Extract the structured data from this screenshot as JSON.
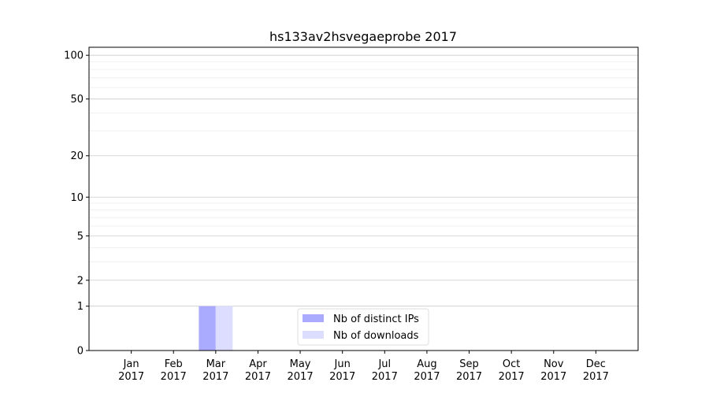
{
  "chart_data": {
    "type": "bar",
    "title": "hs133av2hsvegaeprobe 2017",
    "xlabel": "",
    "ylabel": "",
    "y_scale": "log(1+y)",
    "ylim": [
      0,
      113.5
    ],
    "y_ticks": [
      0,
      1,
      2,
      5,
      10,
      20,
      50,
      100
    ],
    "y_minor_ticks": [
      3,
      4,
      6,
      7,
      8,
      9,
      30,
      40,
      60,
      70,
      80,
      90
    ],
    "grid": true,
    "legend_position": "bottom-center",
    "categories": [
      "Jan\n2017",
      "Feb\n2017",
      "Mar\n2017",
      "Apr\n2017",
      "May\n2017",
      "Jun\n2017",
      "Jul\n2017",
      "Aug\n2017",
      "Sep\n2017",
      "Oct\n2017",
      "Nov\n2017",
      "Dec\n2017"
    ],
    "series": [
      {
        "name": "Nb of distinct IPs",
        "color": "#aaaaff",
        "values": [
          0,
          0,
          1,
          0,
          0,
          0,
          0,
          0,
          0,
          0,
          0,
          0
        ]
      },
      {
        "name": "Nb of downloads",
        "color": "#ddddff",
        "values": [
          0,
          0,
          1,
          0,
          0,
          0,
          0,
          0,
          0,
          0,
          0,
          0
        ]
      }
    ]
  }
}
